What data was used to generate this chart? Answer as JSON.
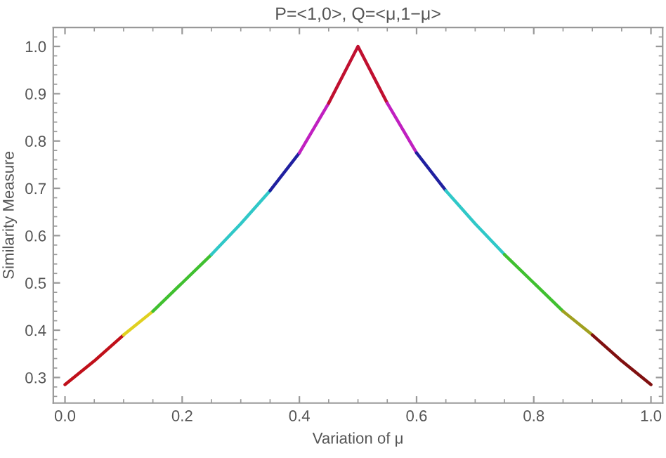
{
  "chart_data": {
    "type": "line",
    "title": "P=<1,0>, Q=<μ,1−μ>",
    "xlabel": "Variation of μ",
    "ylabel": "Similarity Measure",
    "xlim": [
      -0.02,
      1.02
    ],
    "ylim": [
      0.246,
      1.04
    ],
    "xticks": [
      {
        "value": 0,
        "label": "0.0"
      },
      0.2,
      0.4,
      0.6,
      0.8,
      {
        "value": 1,
        "label": "1.0"
      }
    ],
    "yticks": [
      0.3,
      0.4,
      0.5,
      0.6,
      0.7,
      0.8,
      0.9,
      {
        "value": 1,
        "label": "1.0"
      }
    ],
    "grid": false,
    "marker": "none",
    "line_style": "solid",
    "series": [
      {
        "color": "#c0101a",
        "x": [
          0,
          0.05,
          0.1
        ],
        "values": [
          0.285,
          0.335,
          0.39
        ]
      },
      {
        "color": "#e0d020",
        "x": [
          0.1,
          0.15
        ],
        "values": [
          0.39,
          0.44
        ]
      },
      {
        "color": "#40c030",
        "x": [
          0.15,
          0.2,
          0.25
        ],
        "values": [
          0.44,
          0.5,
          0.56
        ]
      },
      {
        "color": "#30c8c8",
        "x": [
          0.25,
          0.3,
          0.35
        ],
        "values": [
          0.56,
          0.625,
          0.695
        ]
      },
      {
        "color": "#2020a0",
        "x": [
          0.35,
          0.4
        ],
        "values": [
          0.695,
          0.775
        ]
      },
      {
        "color": "#c020c0",
        "x": [
          0.4,
          0.45
        ],
        "values": [
          0.775,
          0.88
        ]
      },
      {
        "color": "#c01030",
        "x": [
          0.45,
          0.5,
          0.55
        ],
        "values": [
          0.88,
          1.0,
          0.88
        ]
      },
      {
        "color": "#c020c0",
        "x": [
          0.55,
          0.6
        ],
        "values": [
          0.88,
          0.775
        ]
      },
      {
        "color": "#2020a0",
        "x": [
          0.6,
          0.65
        ],
        "values": [
          0.775,
          0.695
        ]
      },
      {
        "color": "#30c8c8",
        "x": [
          0.65,
          0.7,
          0.75
        ],
        "values": [
          0.695,
          0.625,
          0.56
        ]
      },
      {
        "color": "#40c030",
        "x": [
          0.75,
          0.8,
          0.85
        ],
        "values": [
          0.56,
          0.5,
          0.44
        ]
      },
      {
        "color": "#a0a020",
        "x": [
          0.85,
          0.9
        ],
        "values": [
          0.44,
          0.39
        ]
      },
      {
        "color": "#801010",
        "x": [
          0.9,
          0.95,
          1
        ],
        "values": [
          0.39,
          0.335,
          0.285
        ]
      }
    ]
  }
}
